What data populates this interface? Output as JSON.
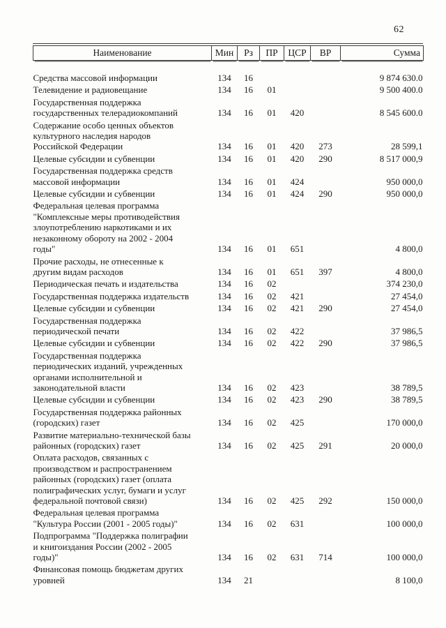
{
  "page": {
    "number": "62"
  },
  "table": {
    "columns": [
      "Наименование",
      "Мин",
      "Рз",
      "ПР",
      "ЦСР",
      "ВР",
      "Сумма"
    ],
    "rows": [
      {
        "name": "Средства массовой информации",
        "min": "134",
        "rz": "16",
        "pr": "",
        "csr": "",
        "vr": "",
        "sum": "9 874 630.0"
      },
      {
        "name": "Телевидение и радиовещание",
        "min": "134",
        "rz": "16",
        "pr": "01",
        "csr": "",
        "vr": "",
        "sum": "9 500 400.0"
      },
      {
        "name": "Государственная поддержка\nгосударственных телерадиокомпаний",
        "min": "134",
        "rz": "16",
        "pr": "01",
        "csr": "420",
        "vr": "",
        "sum": "8 545 600.0"
      },
      {
        "name": "Содержание особо ценных объектов\nкультурного наследия народов\nРоссийской Федерации",
        "min": "134",
        "rz": "16",
        "pr": "01",
        "csr": "420",
        "vr": "273",
        "sum": "28 599,1"
      },
      {
        "name": "Целевые субсидии и субвенции",
        "min": "134",
        "rz": "16",
        "pr": "01",
        "csr": "420",
        "vr": "290",
        "sum": "8 517 000,9"
      },
      {
        "name": "Государственная поддержка средств\nмассовой информации",
        "min": "134",
        "rz": "16",
        "pr": "01",
        "csr": "424",
        "vr": "",
        "sum": "950 000,0"
      },
      {
        "name": "Целевые субсидии и субвенции",
        "min": "134",
        "rz": "16",
        "pr": "01",
        "csr": "424",
        "vr": "290",
        "sum": "950 000,0"
      },
      {
        "name": "Федеральная целевая программа\n\"Комплексные меры противодействия\nзлоупотреблению наркотиками и их\nнезаконному обороту на 2002 - 2004\nгоды\"",
        "min": "134",
        "rz": "16",
        "pr": "01",
        "csr": "651",
        "vr": "",
        "sum": "4 800,0"
      },
      {
        "name": "Прочие расходы, не отнесенные к\nдругим видам расходов",
        "min": "134",
        "rz": "16",
        "pr": "01",
        "csr": "651",
        "vr": "397",
        "sum": "4 800,0"
      },
      {
        "name": "Периодическая печать и издательства",
        "min": "134",
        "rz": "16",
        "pr": "02",
        "csr": "",
        "vr": "",
        "sum": "374 230,0"
      },
      {
        "name": "Государственная поддержка издательств",
        "min": "134",
        "rz": "16",
        "pr": "02",
        "csr": "421",
        "vr": "",
        "sum": "27 454,0"
      },
      {
        "name": "Целевые субсидии и субвенции",
        "min": "134",
        "rz": "16",
        "pr": "02",
        "csr": "421",
        "vr": "290",
        "sum": "27 454,0"
      },
      {
        "name": "Государственная поддержка\nпериодической печати",
        "min": "134",
        "rz": "16",
        "pr": "02",
        "csr": "422",
        "vr": "",
        "sum": "37 986,5"
      },
      {
        "name": "Целевые субсидии и субвенции",
        "min": "134",
        "rz": "16",
        "pr": "02",
        "csr": "422",
        "vr": "290",
        "sum": "37 986,5"
      },
      {
        "name": "Государственная поддержка\nпериодических изданий, учрежденных\nорганами исполнительной и\nзаконодательной власти",
        "min": "134",
        "rz": "16",
        "pr": "02",
        "csr": "423",
        "vr": "",
        "sum": "38 789,5"
      },
      {
        "name": "Целевые субсидии и субвенции",
        "min": "134",
        "rz": "16",
        "pr": "02",
        "csr": "423",
        "vr": "290",
        "sum": "38 789,5"
      },
      {
        "name": "Государственная поддержка районных\n(городских) газет",
        "min": "134",
        "rz": "16",
        "pr": "02",
        "csr": "425",
        "vr": "",
        "sum": "170 000,0"
      },
      {
        "name": "Развитие материально-технической базы\nрайонных (городских) газет",
        "min": "134",
        "rz": "16",
        "pr": "02",
        "csr": "425",
        "vr": "291",
        "sum": "20 000,0"
      },
      {
        "name": "Оплата расходов, связанных с\nпроизводством и распространением\nрайонных (городских) газет (оплата\nполиграфических услуг, бумаги и услуг\nфедеральной почтовой связи)",
        "min": "134",
        "rz": "16",
        "pr": "02",
        "csr": "425",
        "vr": "292",
        "sum": "150 000,0"
      },
      {
        "name": "Федеральная целевая программа\n\"Культура России (2001 - 2005 годы)\"",
        "min": "134",
        "rz": "16",
        "pr": "02",
        "csr": "631",
        "vr": "",
        "sum": "100 000,0"
      },
      {
        "name": "Подпрограмма \"Поддержка полиграфии\nи книгоиздания России (2002 - 2005\nгоды)\"",
        "min": "134",
        "rz": "16",
        "pr": "02",
        "csr": "631",
        "vr": "714",
        "sum": "100 000,0"
      },
      {
        "name": "Финансовая помощь бюджетам других\nуровней",
        "min": "134",
        "rz": "21",
        "pr": "",
        "csr": "",
        "vr": "",
        "sum": "8 100,0"
      }
    ]
  }
}
